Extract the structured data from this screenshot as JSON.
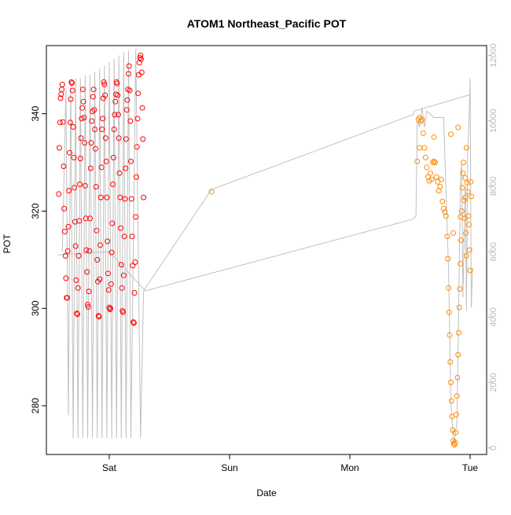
{
  "chart_data": {
    "type": "scatter",
    "title": "ATOM1 Northeast_Pacific POT",
    "xlabel": "Date",
    "ylabel": "POT",
    "x_ticks": [
      "Sat",
      "Sun",
      "Mon",
      "Tue"
    ],
    "ylim": [
      270,
      354
    ],
    "y_ticks": [
      280,
      300,
      320,
      340
    ],
    "y2lim": [
      -200,
      12300
    ],
    "y2_ticks": [
      0,
      2000,
      4000,
      6000,
      8000,
      10000,
      12000
    ],
    "colors": {
      "series_a": "#ff0000",
      "series_b": "#ff8c00",
      "depth_line": "#c0c0c0",
      "right_axis": "#b8b8b8"
    },
    "series": [
      {
        "color": "#ff0000",
        "points": [
          [
            -0.42,
            323.5
          ],
          [
            -0.415,
            333.0
          ],
          [
            -0.41,
            338.2
          ],
          [
            -0.405,
            343.2
          ],
          [
            -0.4,
            344.0
          ],
          [
            -0.395,
            345.0
          ],
          [
            -0.39,
            346.0
          ],
          [
            -0.385,
            338.3
          ],
          [
            -0.38,
            329.2
          ],
          [
            -0.375,
            320.5
          ],
          [
            -0.37,
            315.8
          ],
          [
            -0.365,
            310.8
          ],
          [
            -0.36,
            306.2
          ],
          [
            -0.355,
            302.2
          ],
          [
            -0.35,
            302.2
          ],
          [
            -0.345,
            311.8
          ],
          [
            -0.34,
            316.8
          ],
          [
            -0.335,
            324.2
          ],
          [
            -0.33,
            332.0
          ],
          [
            -0.325,
            338.2
          ],
          [
            -0.32,
            343.0
          ],
          [
            -0.315,
            346.5
          ],
          [
            -0.31,
            346.3
          ],
          [
            -0.305,
            344.8
          ],
          [
            -0.3,
            337.3
          ],
          [
            -0.295,
            331.0
          ],
          [
            -0.29,
            324.8
          ],
          [
            -0.285,
            317.8
          ],
          [
            -0.28,
            312.8
          ],
          [
            -0.275,
            305.8
          ],
          [
            -0.27,
            299.0
          ],
          [
            -0.265,
            298.8
          ],
          [
            -0.26,
            304.2
          ],
          [
            -0.255,
            310.8
          ],
          [
            -0.25,
            318.0
          ],
          [
            -0.245,
            325.5
          ],
          [
            -0.24,
            330.8
          ],
          [
            -0.235,
            335.0
          ],
          [
            -0.23,
            339.0
          ],
          [
            -0.225,
            341.2
          ],
          [
            -0.22,
            345.0
          ],
          [
            -0.215,
            342.5
          ],
          [
            -0.21,
            339.2
          ],
          [
            -0.205,
            334.0
          ],
          [
            -0.2,
            325.2
          ],
          [
            -0.195,
            318.5
          ],
          [
            -0.19,
            312.0
          ],
          [
            -0.185,
            307.5
          ],
          [
            -0.18,
            300.8
          ],
          [
            -0.175,
            300.3
          ],
          [
            -0.17,
            303.5
          ],
          [
            -0.165,
            311.8
          ],
          [
            -0.16,
            318.5
          ],
          [
            -0.155,
            328.8
          ],
          [
            -0.15,
            334.0
          ],
          [
            -0.145,
            338.5
          ],
          [
            -0.14,
            340.5
          ],
          [
            -0.135,
            343.5
          ],
          [
            -0.13,
            345.0
          ],
          [
            -0.125,
            340.8
          ],
          [
            -0.12,
            336.8
          ],
          [
            -0.115,
            332.8
          ],
          [
            -0.11,
            325.0
          ],
          [
            -0.105,
            316.0
          ],
          [
            -0.1,
            310.0
          ],
          [
            -0.095,
            305.5
          ],
          [
            -0.09,
            298.5
          ],
          [
            -0.085,
            298.3
          ],
          [
            -0.08,
            306.0
          ],
          [
            -0.075,
            313.0
          ],
          [
            -0.07,
            322.8
          ],
          [
            -0.065,
            329.0
          ],
          [
            -0.06,
            336.8
          ],
          [
            -0.055,
            339.0
          ],
          [
            -0.05,
            343.2
          ],
          [
            -0.045,
            346.5
          ],
          [
            -0.04,
            346.0
          ],
          [
            -0.035,
            343.8
          ],
          [
            -0.03,
            335.0
          ],
          [
            -0.025,
            330.2
          ],
          [
            -0.02,
            322.8
          ],
          [
            -0.015,
            313.8
          ],
          [
            -0.01,
            307.2
          ],
          [
            -0.005,
            303.8
          ],
          [
            0.0,
            300.2
          ],
          [
            0.005,
            299.8
          ],
          [
            0.01,
            300.0
          ],
          [
            0.015,
            305.0
          ],
          [
            0.02,
            311.5
          ],
          [
            0.025,
            317.5
          ],
          [
            0.03,
            325.5
          ],
          [
            0.035,
            331.0
          ],
          [
            0.04,
            336.8
          ],
          [
            0.045,
            339.8
          ],
          [
            0.05,
            342.5
          ],
          [
            0.055,
            344.0
          ],
          [
            0.06,
            346.5
          ],
          [
            0.065,
            346.2
          ],
          [
            0.07,
            343.8
          ],
          [
            0.075,
            339.8
          ],
          [
            0.08,
            335.0
          ],
          [
            0.085,
            327.8
          ],
          [
            0.09,
            322.8
          ],
          [
            0.095,
            316.5
          ],
          [
            0.1,
            309.0
          ],
          [
            0.105,
            304.2
          ],
          [
            0.11,
            299.5
          ],
          [
            0.115,
            299.2
          ],
          [
            0.12,
            306.8
          ],
          [
            0.125,
            314.8
          ],
          [
            0.13,
            322.5
          ],
          [
            0.135,
            328.8
          ],
          [
            0.14,
            334.8
          ],
          [
            0.145,
            340.8
          ],
          [
            0.15,
            342.8
          ],
          [
            0.155,
            345.0
          ],
          [
            0.16,
            348.2
          ],
          [
            0.165,
            349.8
          ],
          [
            0.17,
            344.8
          ],
          [
            0.175,
            338.5
          ],
          [
            0.18,
            330.2
          ],
          [
            0.185,
            322.5
          ],
          [
            0.19,
            314.8
          ],
          [
            0.195,
            308.8
          ],
          [
            0.2,
            297.2
          ],
          [
            0.205,
            297.0
          ],
          [
            0.21,
            303.2
          ],
          [
            0.215,
            309.5
          ],
          [
            0.22,
            318.8
          ],
          [
            0.225,
            327.0
          ],
          [
            0.23,
            333.2
          ],
          [
            0.235,
            339.0
          ],
          [
            0.24,
            344.2
          ],
          [
            0.245,
            348.0
          ],
          [
            0.25,
            350.5
          ],
          [
            0.255,
            351.5
          ],
          [
            0.26,
            352.0
          ],
          [
            0.265,
            351.2
          ],
          [
            0.27,
            348.5
          ],
          [
            0.275,
            341.2
          ],
          [
            0.28,
            334.8
          ],
          [
            0.285,
            322.8
          ]
        ]
      },
      {
        "color": "#ff8c00",
        "points": [
          [
            0.85,
            324.0
          ],
          [
            2.56,
            330.2
          ],
          [
            2.57,
            338.8
          ],
          [
            2.58,
            339.2
          ],
          [
            2.59,
            338.5
          ],
          [
            2.6,
            338.8
          ],
          [
            2.61,
            336.0
          ],
          [
            2.62,
            333.0
          ],
          [
            2.63,
            331.0
          ],
          [
            2.64,
            329.0
          ],
          [
            2.65,
            327.0
          ],
          [
            2.66,
            326.2
          ],
          [
            2.67,
            327.8
          ],
          [
            2.68,
            326.5
          ],
          [
            2.69,
            330.0
          ],
          [
            2.7,
            330.2
          ],
          [
            2.71,
            330.0
          ],
          [
            2.72,
            327.0
          ],
          [
            2.73,
            326.0
          ],
          [
            2.74,
            324.2
          ],
          [
            2.75,
            325.0
          ],
          [
            2.76,
            326.5
          ],
          [
            2.77,
            322.0
          ],
          [
            2.78,
            320.5
          ],
          [
            2.79,
            319.8
          ],
          [
            2.8,
            319.0
          ],
          [
            2.81,
            314.8
          ],
          [
            2.815,
            310.2
          ],
          [
            2.82,
            304.2
          ],
          [
            2.825,
            299.2
          ],
          [
            2.83,
            294.5
          ],
          [
            2.835,
            289.0
          ],
          [
            2.84,
            284.8
          ],
          [
            2.845,
            281.0
          ],
          [
            2.85,
            277.8
          ],
          [
            2.855,
            275.0
          ],
          [
            2.86,
            272.8
          ],
          [
            2.865,
            272.2
          ],
          [
            2.87,
            272.0
          ],
          [
            2.875,
            272.5
          ],
          [
            2.88,
            274.5
          ],
          [
            2.885,
            278.2
          ],
          [
            2.89,
            282.0
          ],
          [
            2.895,
            285.8
          ],
          [
            2.9,
            290.5
          ],
          [
            2.905,
            295.0
          ],
          [
            2.91,
            300.2
          ],
          [
            2.915,
            304.0
          ],
          [
            2.92,
            309.2
          ],
          [
            2.925,
            314.0
          ],
          [
            2.93,
            320.0
          ],
          [
            2.935,
            324.8
          ],
          [
            2.94,
            327.8
          ],
          [
            2.945,
            330.0
          ],
          [
            2.95,
            322.2
          ],
          [
            2.955,
            318.5
          ],
          [
            2.96,
            326.8
          ],
          [
            2.965,
            315.5
          ],
          [
            2.97,
            310.8
          ],
          [
            2.975,
            325.8
          ],
          [
            2.98,
            324.0
          ],
          [
            2.985,
            319.0
          ],
          [
            2.99,
            317.2
          ],
          [
            2.995,
            312.0
          ],
          [
            3.0,
            307.8
          ],
          [
            3.005,
            326.0
          ],
          [
            3.01,
            323.0
          ],
          [
            2.58,
            333.0
          ],
          [
            2.7,
            335.2
          ],
          [
            2.84,
            335.8
          ],
          [
            2.9,
            337.2
          ],
          [
            2.96,
            322.8
          ],
          [
            2.92,
            318.8
          ],
          [
            2.86,
            315.5
          ],
          [
            2.97,
            333.0
          ]
        ]
      }
    ],
    "depth_line": {
      "color": "#c0c0c0",
      "axis": "right",
      "points": [
        [
          -0.39,
          6000
        ],
        [
          -0.36,
          11000
        ],
        [
          -0.34,
          1000
        ],
        [
          -0.32,
          11200
        ],
        [
          -0.3,
          300
        ],
        [
          -0.28,
          11300
        ],
        [
          -0.26,
          300
        ],
        [
          -0.24,
          11300
        ],
        [
          -0.22,
          300
        ],
        [
          -0.2,
          11400
        ],
        [
          -0.18,
          300
        ],
        [
          -0.16,
          11400
        ],
        [
          -0.14,
          300
        ],
        [
          -0.12,
          11500
        ],
        [
          -0.1,
          300
        ],
        [
          -0.08,
          11600
        ],
        [
          -0.06,
          300
        ],
        [
          -0.04,
          11700
        ],
        [
          -0.02,
          300
        ],
        [
          0.0,
          11800
        ],
        [
          0.02,
          300
        ],
        [
          0.04,
          11900
        ],
        [
          0.06,
          300
        ],
        [
          0.08,
          12000
        ],
        [
          0.1,
          300
        ],
        [
          0.12,
          12100
        ],
        [
          0.14,
          300
        ],
        [
          0.16,
          12150
        ],
        [
          0.18,
          300
        ],
        [
          0.22,
          12200
        ],
        [
          0.26,
          300
        ],
        [
          0.285,
          4800
        ],
        [
          0.85,
          7900
        ],
        [
          2.53,
          10200
        ],
        [
          2.535,
          10300
        ],
        [
          3.0,
          10800
        ]
      ],
      "loop_out": [
        [
          -0.43,
          5900
        ],
        [
          0.0,
          6000
        ],
        [
          0.3,
          4800
        ],
        [
          2.53,
          7000
        ],
        [
          2.55,
          7100
        ],
        [
          2.56,
          10000
        ],
        [
          2.58,
          9800
        ],
        [
          2.6,
          10400
        ],
        [
          2.62,
          9800
        ],
        [
          2.64,
          10300
        ],
        [
          2.7,
          10100
        ],
        [
          2.78,
          10100
        ],
        [
          2.8,
          7800
        ],
        [
          2.82,
          5500
        ],
        [
          2.83,
          3500
        ],
        [
          2.84,
          1400
        ],
        [
          2.86,
          300
        ],
        [
          2.87,
          200
        ],
        [
          2.89,
          800
        ],
        [
          2.9,
          3000
        ],
        [
          2.92,
          8300
        ],
        [
          2.93,
          8700
        ],
        [
          2.94,
          4600
        ],
        [
          2.96,
          8000
        ],
        [
          2.97,
          4200
        ],
        [
          2.98,
          9100
        ],
        [
          2.99,
          9900
        ],
        [
          3.0,
          11300
        ],
        [
          3.01,
          4300
        ],
        [
          3.02,
          5500
        ]
      ]
    }
  }
}
